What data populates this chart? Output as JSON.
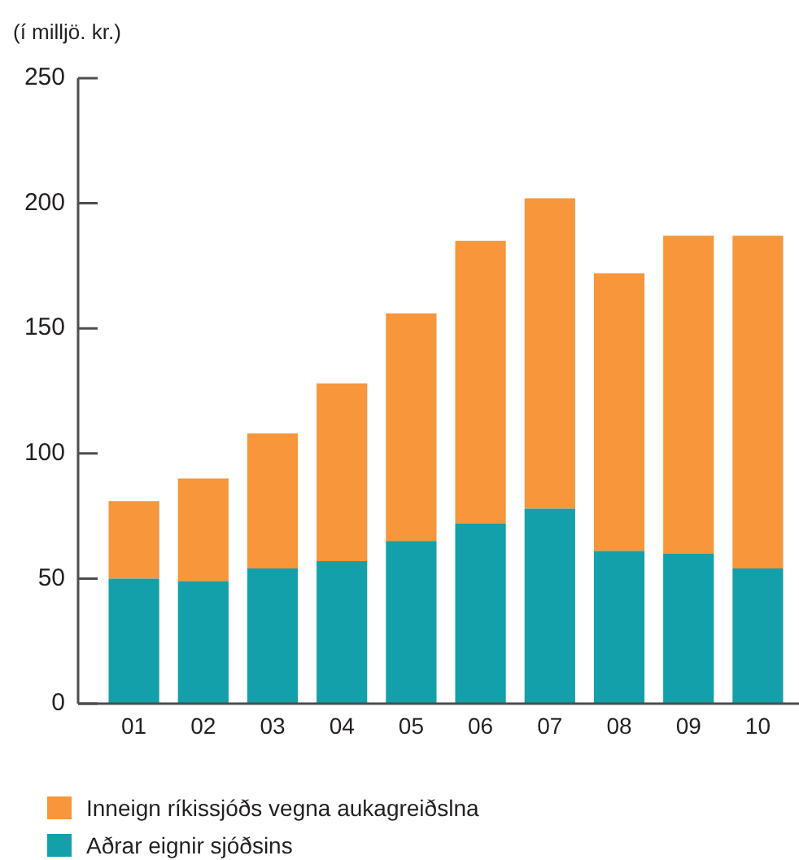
{
  "chart_data": {
    "type": "bar",
    "ylabel": "(í milljö. kr.)",
    "categories": [
      "01",
      "02",
      "03",
      "04",
      "05",
      "06",
      "07",
      "08",
      "09",
      "10"
    ],
    "series": [
      {
        "name": "Aðrar eignir sjóðsins",
        "color": "#13a0ab",
        "values": [
          50,
          49,
          54,
          57,
          65,
          72,
          78,
          61,
          60,
          54
        ]
      },
      {
        "name": "Inneign ríkissjóðs vegna aukagreiðslna",
        "color": "#f7963a",
        "values": [
          31,
          41,
          54,
          71,
          91,
          113,
          124,
          111,
          127,
          133
        ]
      }
    ],
    "stacked": true,
    "ylim": [
      0,
      250
    ],
    "yticks": [
      0,
      50,
      100,
      150,
      200,
      250
    ],
    "legend": "bottom"
  }
}
